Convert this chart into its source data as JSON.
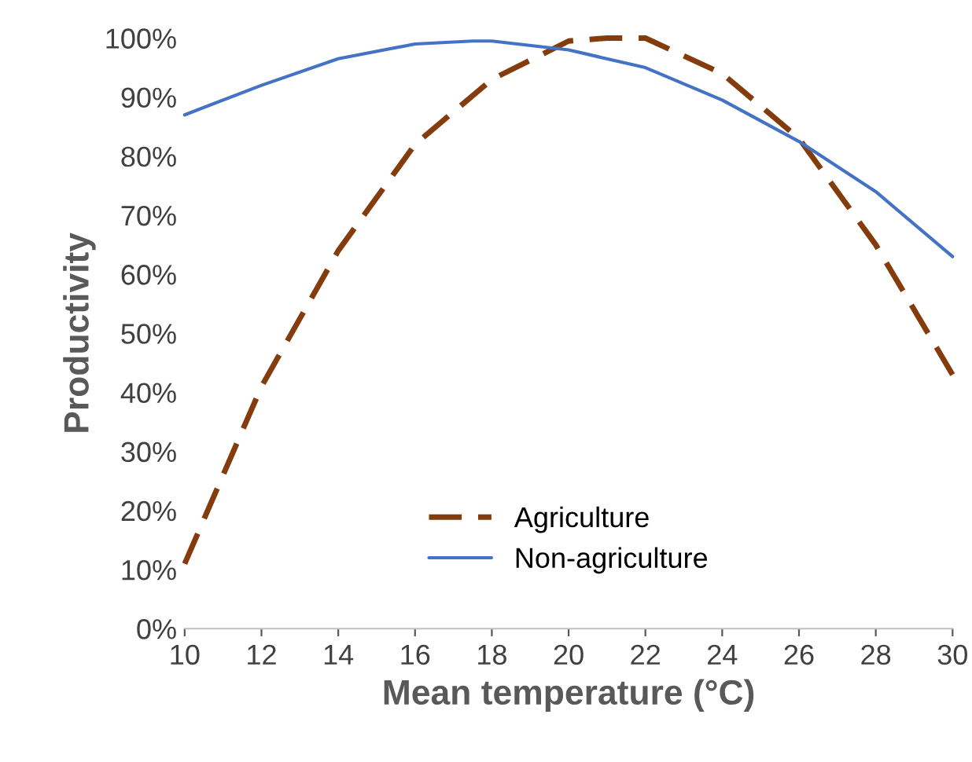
{
  "chart_data": {
    "type": "line",
    "xlabel": "Mean temperature (°C)",
    "ylabel": "Productivity",
    "xlim": [
      10,
      30
    ],
    "xticks": [
      10,
      12,
      14,
      16,
      18,
      20,
      22,
      24,
      26,
      28,
      30
    ],
    "ylim": [
      0,
      100
    ],
    "yticks": [
      {
        "value": 0,
        "label": "0%"
      },
      {
        "value": 10,
        "label": "10%"
      },
      {
        "value": 20,
        "label": "20%"
      },
      {
        "value": 30,
        "label": "30%"
      },
      {
        "value": 40,
        "label": "40%"
      },
      {
        "value": 50,
        "label": "50%"
      },
      {
        "value": 60,
        "label": "60%"
      },
      {
        "value": 70,
        "label": "70%"
      },
      {
        "value": 80,
        "label": "80%"
      },
      {
        "value": 90,
        "label": "90%"
      },
      {
        "value": 100,
        "label": "100%"
      }
    ],
    "grid": false,
    "legend": "bottom",
    "marker": "none",
    "series": [
      {
        "name": "Agriculture",
        "color": "#843c0c",
        "line_style": "dashed",
        "x": [
          10,
          12,
          14,
          16,
          18,
          20,
          21,
          22,
          24,
          26,
          28,
          30
        ],
        "values": [
          11,
          41,
          64,
          82,
          93,
          99.5,
          100,
          100,
          94,
          83,
          65,
          43
        ]
      },
      {
        "name": "Non-agriculture",
        "color": "#4472c4",
        "line_style": "solid",
        "x": [
          10,
          12,
          14,
          16,
          17.5,
          18,
          20,
          22,
          24,
          26,
          28,
          30
        ],
        "values": [
          87,
          92,
          96.5,
          99,
          99.5,
          99.5,
          98,
          95,
          89.5,
          82.5,
          74,
          63
        ]
      }
    ]
  }
}
